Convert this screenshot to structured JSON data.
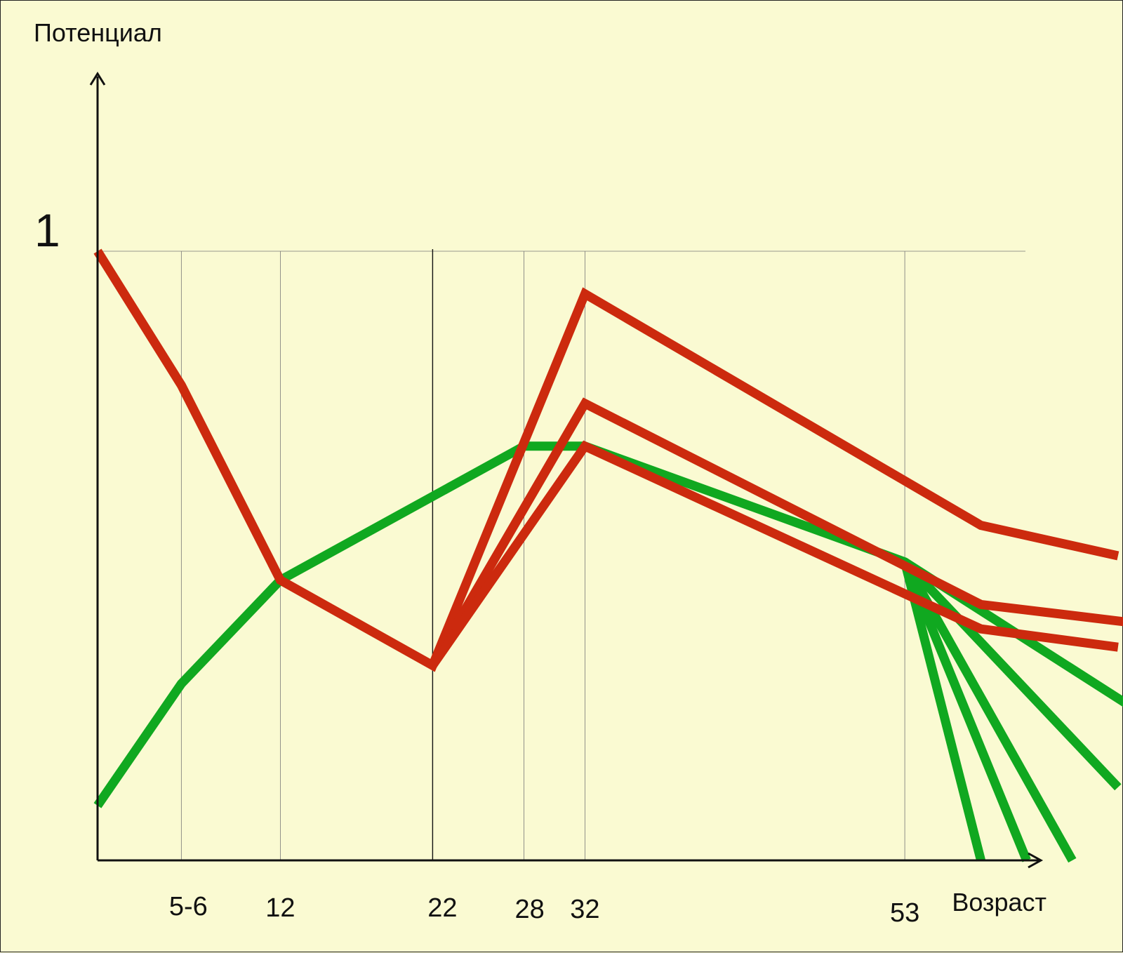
{
  "chart_data": {
    "type": "line",
    "ylabel": "Потенциал",
    "xlabel": "Возраст",
    "y_tick": "1",
    "x_ticks": [
      {
        "value": 5.5,
        "label": "5-6"
      },
      {
        "value": 12,
        "label": "12"
      },
      {
        "value": 22,
        "label": "22"
      },
      {
        "value": 28,
        "label": "28"
      },
      {
        "value": 32,
        "label": "32"
      },
      {
        "value": 53,
        "label": "53"
      }
    ],
    "xlim": [
      0,
      68
    ],
    "ylim": [
      0,
      1.25
    ],
    "grid": true,
    "colors": {
      "red": "#cc2a0e",
      "green": "#10a820",
      "axis": "#111111",
      "grid": "#777777",
      "background": "#fafad2"
    },
    "series": [
      {
        "color": "red",
        "points": [
          [
            0,
            1.0
          ],
          [
            5.5,
            0.78
          ],
          [
            12,
            0.46
          ],
          [
            22,
            0.32
          ],
          [
            32,
            0.93
          ],
          [
            58,
            0.55
          ],
          [
            67,
            0.5
          ]
        ]
      },
      {
        "color": "red",
        "points": [
          [
            22,
            0.32
          ],
          [
            32,
            0.75
          ],
          [
            58,
            0.42
          ],
          [
            68,
            0.39
          ]
        ]
      },
      {
        "color": "red",
        "points": [
          [
            22,
            0.32
          ],
          [
            32,
            0.68
          ],
          [
            58,
            0.38
          ],
          [
            67,
            0.35
          ]
        ]
      },
      {
        "color": "green",
        "points": [
          [
            0,
            0.09
          ],
          [
            5.5,
            0.29
          ],
          [
            12,
            0.46
          ],
          [
            28,
            0.68
          ],
          [
            32,
            0.68
          ],
          [
            53,
            0.49
          ],
          [
            68,
            0.25
          ]
        ]
      },
      {
        "color": "green",
        "points": [
          [
            53,
            0.49
          ],
          [
            67,
            0.12
          ]
        ]
      },
      {
        "color": "green",
        "points": [
          [
            53,
            0.49
          ],
          [
            64,
            0.0
          ]
        ]
      },
      {
        "color": "green",
        "points": [
          [
            53,
            0.49
          ],
          [
            61,
            0.0
          ]
        ]
      },
      {
        "color": "green",
        "points": [
          [
            53,
            0.49
          ],
          [
            58,
            0.0
          ]
        ]
      }
    ]
  }
}
